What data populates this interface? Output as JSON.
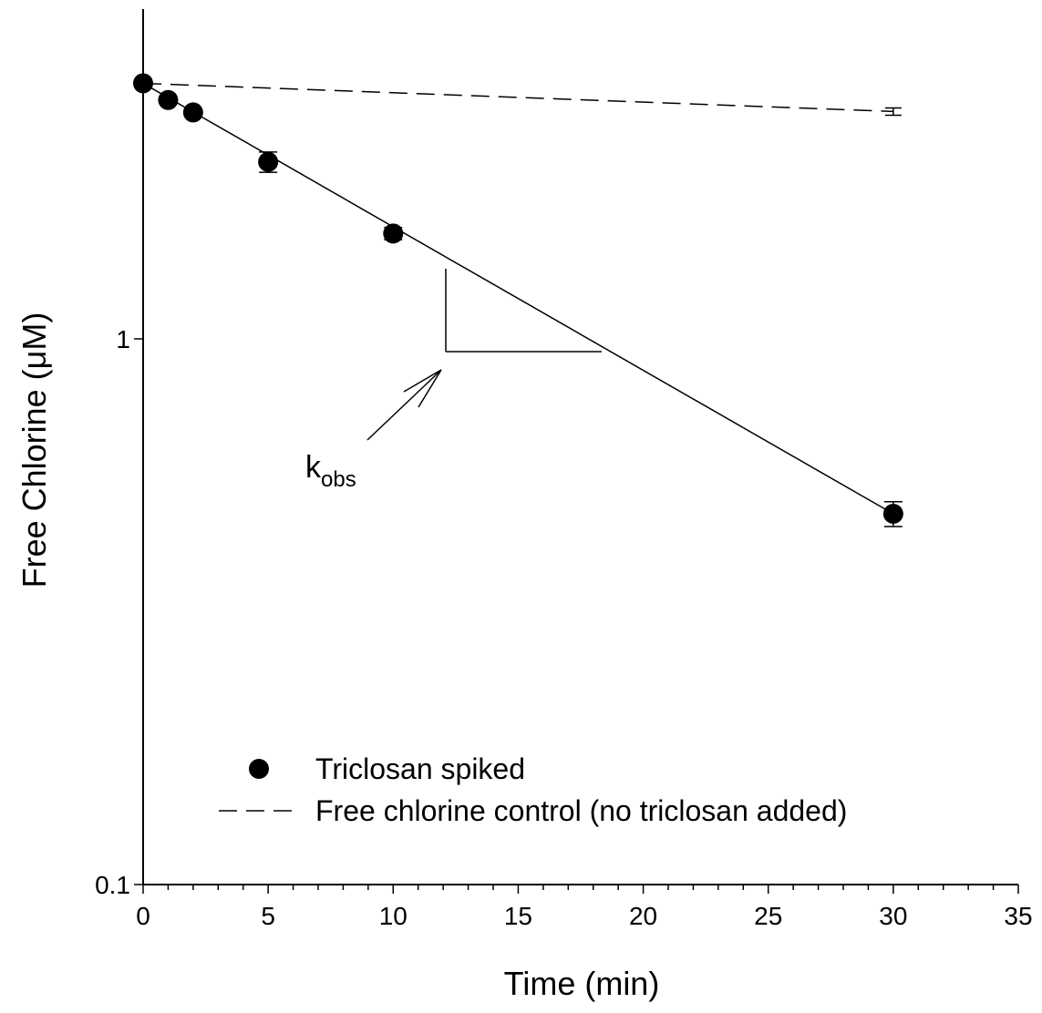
{
  "chart_data": {
    "type": "scatter",
    "xlabel": "Time (min)",
    "ylabel": "Free Chlorine (μM)",
    "xlim": [
      0,
      35
    ],
    "ylim": [
      0.1,
      3.0
    ],
    "y_scale": "log",
    "x_ticks": [
      "0",
      "5",
      "10",
      "15",
      "20",
      "25",
      "30",
      "35"
    ],
    "y_ticks": [
      "0.1",
      "1"
    ],
    "legend_position": "bottom-left",
    "series": [
      {
        "name": "Triclosan spiked",
        "marker": "filled-circle",
        "fit_line": "solid",
        "x": [
          0,
          1,
          2,
          5,
          10,
          30
        ],
        "y": [
          2.94,
          2.74,
          2.6,
          2.11,
          1.56,
          0.478
        ],
        "y_err": [
          0.03,
          0.04,
          0.04,
          0.09,
          0.04,
          0.025
        ]
      },
      {
        "name": "Free chlorine control (no triclosan added)",
        "line_style": "dashed",
        "x": [
          0,
          30
        ],
        "y": [
          2.94,
          2.61
        ],
        "y_err": [
          0,
          0.04
        ]
      }
    ],
    "annotations": [
      {
        "text": "k",
        "subscript": "obs",
        "points_to": "slope-triangle"
      }
    ]
  }
}
